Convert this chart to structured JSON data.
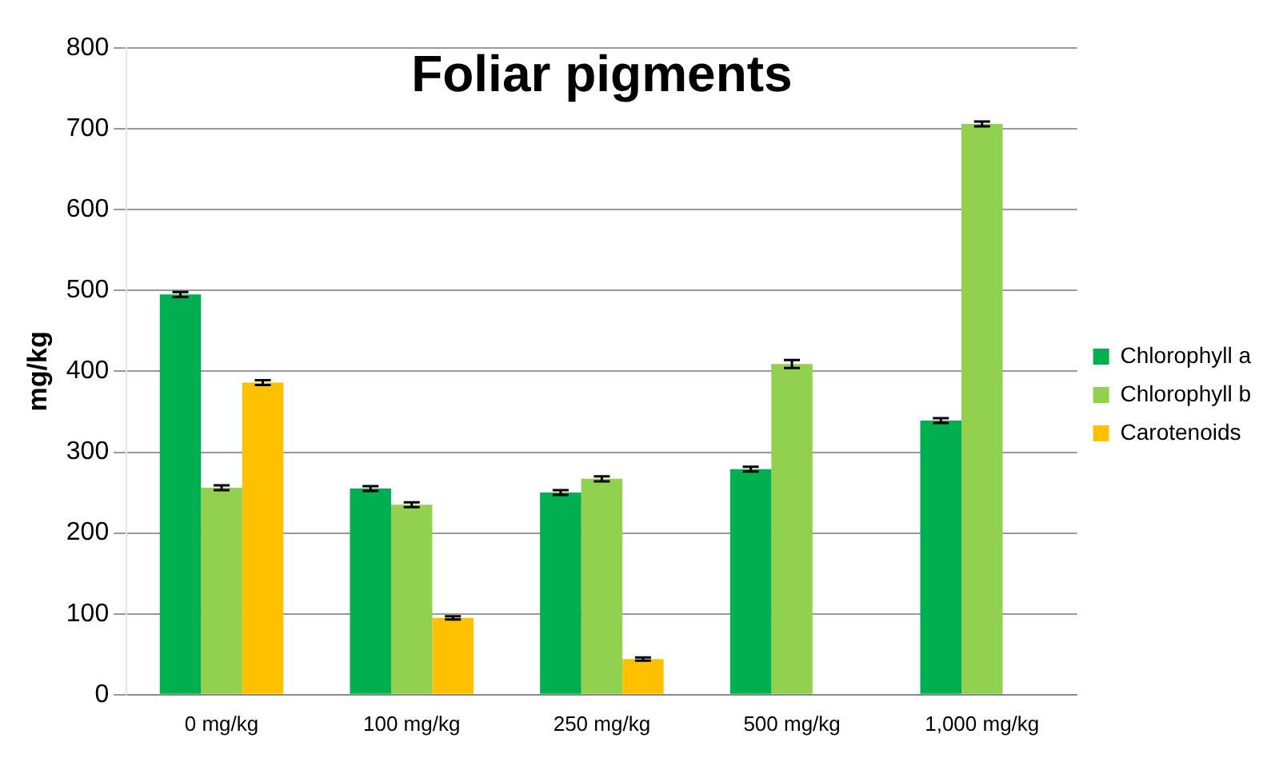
{
  "chart_data": {
    "type": "bar",
    "title": "Foliar pigments",
    "ylabel": "mg/kg",
    "categories": [
      "0 mg/kg",
      "100 mg/kg",
      "250 mg/kg",
      "500 mg/kg",
      "1,000 mg/kg"
    ],
    "series": [
      {
        "name": "Chlorophyll a",
        "color": "#00b050",
        "values": [
          495,
          255,
          250,
          279,
          339
        ],
        "errors": [
          3,
          3,
          3,
          3,
          3
        ]
      },
      {
        "name": "Chlorophyll b",
        "color": "#92d050",
        "values": [
          256,
          235,
          267,
          409,
          706
        ],
        "errors": [
          3,
          3,
          3,
          5,
          3
        ]
      },
      {
        "name": "Carotenoids",
        "color": "#ffc000",
        "values": [
          386,
          95,
          44,
          null,
          null
        ],
        "errors": [
          3,
          2,
          2,
          null,
          null
        ]
      }
    ],
    "ylim": [
      0,
      800
    ],
    "yticks": [
      0,
      100,
      200,
      300,
      400,
      500,
      600,
      700,
      800
    ],
    "grid": "y",
    "legend": "right"
  }
}
